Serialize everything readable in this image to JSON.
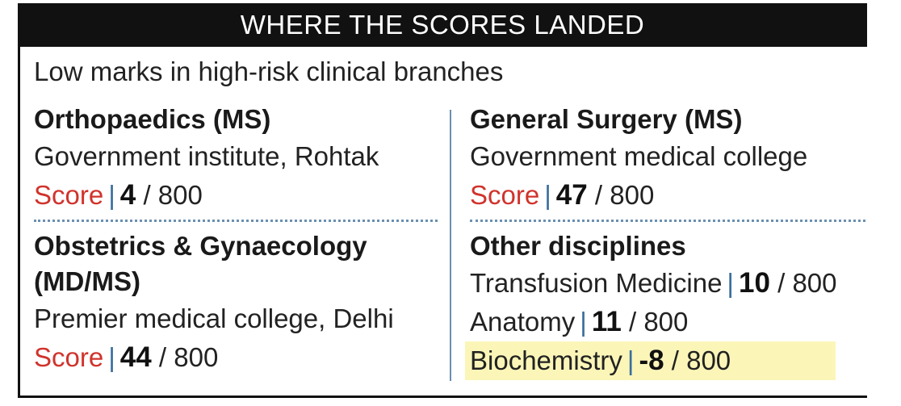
{
  "banner": {
    "title": "WHERE THE SCORES LANDED"
  },
  "subtitle": "Low marks in high-risk clinical branches",
  "left": [
    {
      "heading": "Orthopaedics (MS)",
      "institution": "Government institute, Rohtak",
      "score_label": "Score",
      "score": "4",
      "max": "/ 800"
    },
    {
      "heading_line1": "Obstetrics & Gynaecology",
      "heading_line2": "(MD/MS)",
      "institution": "Premier medical college, Delhi",
      "score_label": "Score",
      "score": "44",
      "max": "/ 800"
    }
  ],
  "right": [
    {
      "heading": "General Surgery (MS)",
      "institution": "Government medical college",
      "score_label": "Score",
      "score": "47",
      "max": "/ 800"
    },
    {
      "heading": "Other disciplines",
      "items": [
        {
          "name": "Transfusion Medicine",
          "score": "10",
          "max": "/ 800"
        },
        {
          "name": "Anatomy",
          "score": "11",
          "max": "/ 800"
        },
        {
          "name": "Biochemistry",
          "score": "-8",
          "max": "/ 800",
          "highlight_color": "#fbf6b8"
        }
      ]
    }
  ],
  "separator": "|"
}
